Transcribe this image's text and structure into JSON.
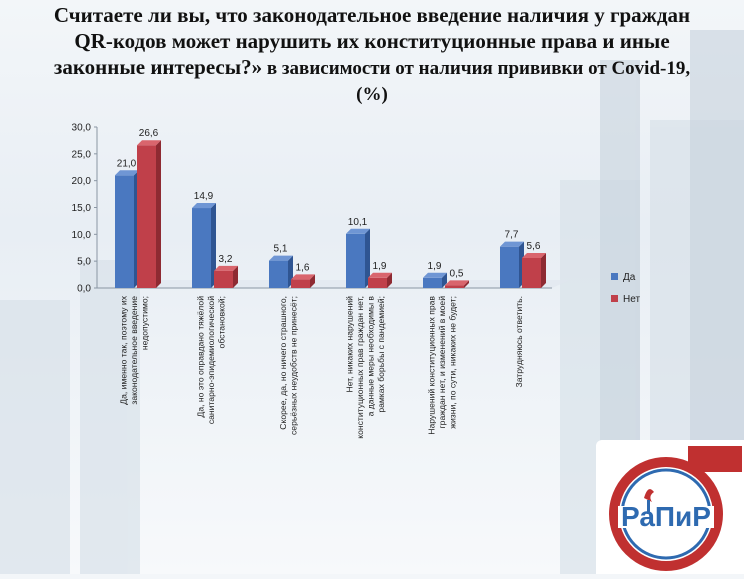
{
  "title": {
    "line1": "Считаете ли вы, что законодательное введение наличия у граждан",
    "line2": "QR-кодов может нарушить их конституционные права и иные",
    "line3a": "законные интересы?»",
    "line3b": " в зависимости от наличия прививки от Covid-19,",
    "line4": "(%)"
  },
  "colors": {
    "yes": "#4a78c0",
    "no": "#c0404a",
    "grid": "#bfc7d0"
  },
  "logo": {
    "name": "РаПиР",
    "icon": "torch-logo-icon"
  },
  "chart_data": {
    "type": "bar",
    "categories": [
      [
        "Да, именно так, поэтому их",
        "законодательное введение",
        "недопустимо;"
      ],
      [
        "Да, но это оправдано тяжёлой",
        "санитарно-эпидемиологической",
        "обстановкой;"
      ],
      [
        "Скорее, да, но ничего страшного,",
        "серьёзных неудобств не принесёт;"
      ],
      [
        "Нет, никаких нарушений",
        "конституционных прав граждан нет,",
        "а данные меры необходимы в",
        "рамках борьбы с пандемией;"
      ],
      [
        "Нарушений конституционных прав",
        "граждан нет, и изменений в моей",
        "жизни, по сути, никаких не будет;"
      ],
      [
        "Затрудняюсь ответить."
      ]
    ],
    "series": [
      {
        "name": "Да",
        "values": [
          21.0,
          14.9,
          5.1,
          10.1,
          1.9,
          7.7
        ],
        "labels": [
          "21,0",
          "14,9",
          "5,1",
          "10,1",
          "1,9",
          "7,7"
        ]
      },
      {
        "name": "Нет",
        "values": [
          26.6,
          3.2,
          1.6,
          1.9,
          0.5,
          5.6
        ],
        "labels": [
          "26,6",
          "3,2",
          "1,6",
          "1,9",
          "0,5",
          "5,6"
        ]
      }
    ],
    "ylim": [
      0,
      30
    ],
    "yticks": [
      0,
      5,
      10,
      15,
      20,
      25,
      30
    ],
    "ytick_labels": [
      "0,0",
      "5,0",
      "10,0",
      "15,0",
      "20,0",
      "25,0",
      "30,0"
    ],
    "legend_position": "right",
    "grid": false
  }
}
